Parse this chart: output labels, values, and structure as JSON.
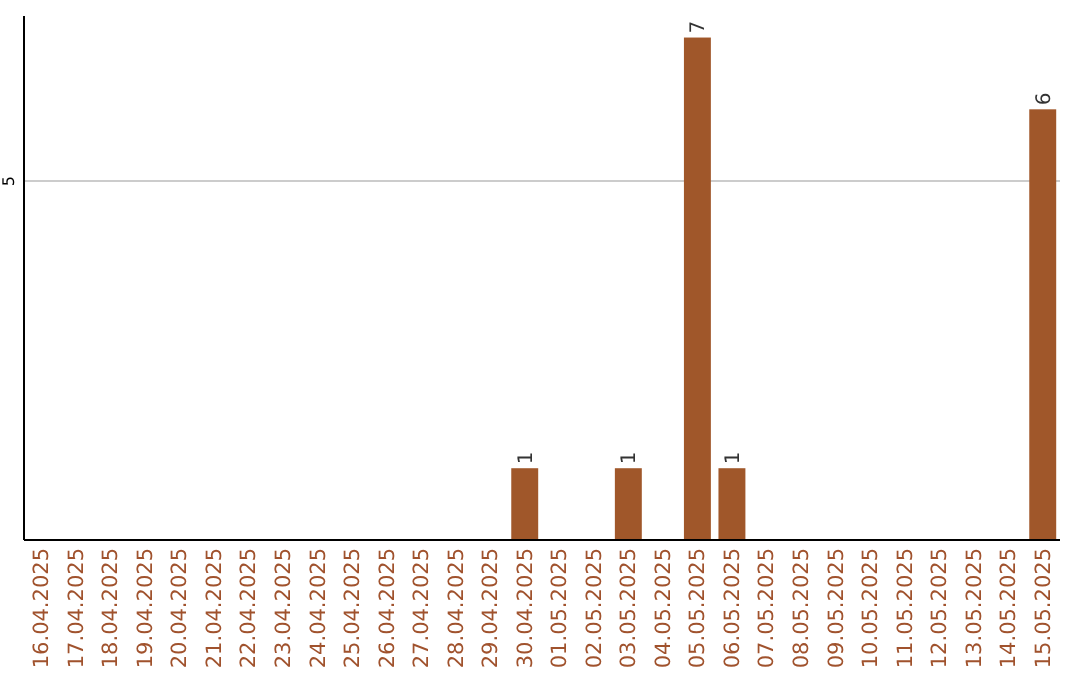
{
  "chart_data": {
    "type": "bar",
    "categories": [
      "16.04.2025",
      "17.04.2025",
      "18.04.2025",
      "19.04.2025",
      "20.04.2025",
      "21.04.2025",
      "22.04.2025",
      "23.04.2025",
      "24.04.2025",
      "25.04.2025",
      "26.04.2025",
      "27.04.2025",
      "28.04.2025",
      "29.04.2025",
      "30.04.2025",
      "01.05.2025",
      "02.05.2025",
      "03.05.2025",
      "04.05.2025",
      "05.05.2025",
      "06.05.2025",
      "07.05.2025",
      "08.05.2025",
      "09.05.2025",
      "10.05.2025",
      "11.05.2025",
      "12.05.2025",
      "13.05.2025",
      "14.05.2025",
      "15.05.2025"
    ],
    "values": [
      null,
      null,
      null,
      null,
      null,
      null,
      null,
      null,
      null,
      null,
      null,
      null,
      null,
      null,
      1,
      null,
      null,
      1,
      null,
      7,
      1,
      null,
      null,
      null,
      null,
      null,
      null,
      null,
      null,
      6
    ],
    "color": "#a0572a",
    "data_labels": true,
    "ylim": [
      0,
      7.3
    ],
    "ref_lines": [
      {
        "axis": "y",
        "value": 5,
        "label": "5",
        "color": "#cccccc"
      }
    ]
  }
}
